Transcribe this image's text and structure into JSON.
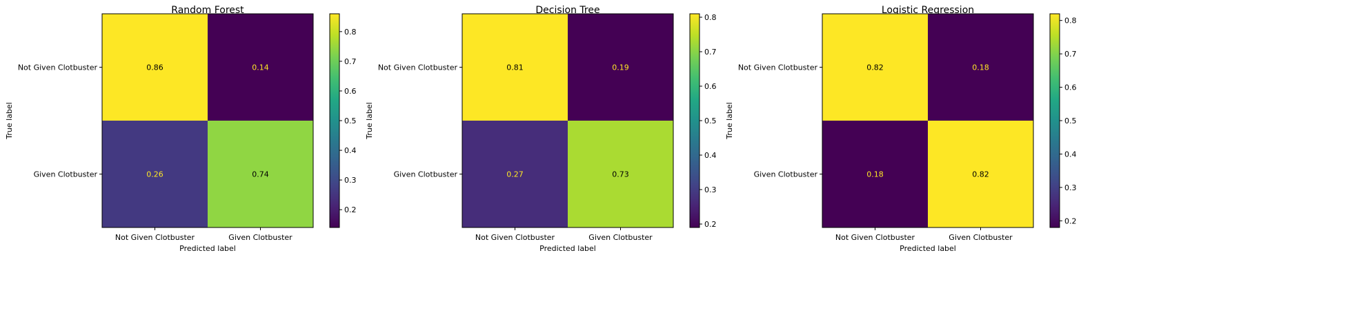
{
  "chart_data": [
    {
      "type": "heatmap",
      "title": "Random Forest",
      "xlabel": "Predicted label",
      "ylabel": "True label",
      "x_categories": [
        "Not Given Clotbuster",
        "Given Clotbuster"
      ],
      "y_categories": [
        "Not Given Clotbuster",
        "Given Clotbuster"
      ],
      "values": [
        [
          0.86,
          0.14
        ],
        [
          0.26,
          0.74
        ]
      ],
      "colormap": "viridis",
      "colorbar": {
        "min": 0.14,
        "max": 0.86,
        "ticks": [
          0.2,
          0.3,
          0.4,
          0.5,
          0.6,
          0.7,
          0.8
        ]
      }
    },
    {
      "type": "heatmap",
      "title": "Decision Tree",
      "xlabel": "Predicted label",
      "ylabel": "True label",
      "x_categories": [
        "Not Given Clotbuster",
        "Given Clotbuster"
      ],
      "y_categories": [
        "Not Given Clotbuster",
        "Given Clotbuster"
      ],
      "values": [
        [
          0.81,
          0.19
        ],
        [
          0.27,
          0.73
        ]
      ],
      "colormap": "viridis",
      "colorbar": {
        "min": 0.19,
        "max": 0.81,
        "ticks": [
          0.2,
          0.3,
          0.4,
          0.5,
          0.6,
          0.7,
          0.8
        ]
      }
    },
    {
      "type": "heatmap",
      "title": "Logistic Regression",
      "xlabel": "Predicted label",
      "ylabel": "True label",
      "x_categories": [
        "Not Given Clotbuster",
        "Given Clotbuster"
      ],
      "y_categories": [
        "Not Given Clotbuster",
        "Given Clotbuster"
      ],
      "values": [
        [
          0.82,
          0.18
        ],
        [
          0.18,
          0.82
        ]
      ],
      "colormap": "viridis",
      "colorbar": {
        "min": 0.18,
        "max": 0.82,
        "ticks": [
          0.2,
          0.3,
          0.4,
          0.5,
          0.6,
          0.7,
          0.8
        ]
      }
    }
  ],
  "colors": {
    "text_on_dark": "#fde725",
    "text_on_light": "#000000",
    "axes": "#000000"
  }
}
